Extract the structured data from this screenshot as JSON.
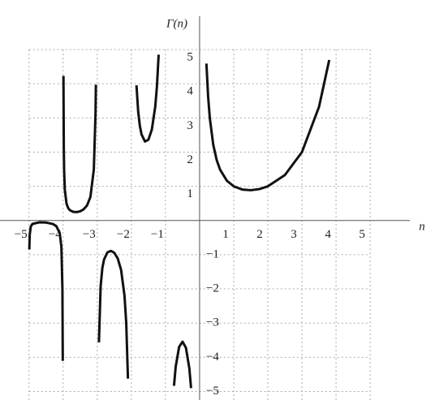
{
  "chart_data": {
    "type": "line",
    "title": "Γ(n)",
    "x_label": "n",
    "color": "#111111",
    "grid": true,
    "x": [
      -4.99,
      -4.98,
      -4.95,
      -4.9,
      -4.7,
      -4.5,
      -4.3,
      -4.2,
      -4.1,
      -4.05,
      -4.02,
      -4.01,
      -4,
      -3.99,
      -3.98,
      -3.97,
      -3.95,
      -3.9,
      -3.85,
      -3.8,
      -3.7,
      -3.6,
      -3.5,
      -3.4,
      -3.3,
      -3.2,
      -3.1,
      -3.05,
      -3.04,
      -3,
      -2.95,
      -2.9,
      -2.85,
      -2.8,
      -2.7,
      -2.6,
      -2.5,
      -2.4,
      -2.3,
      -2.2,
      -2.15,
      -2.1,
      -2,
      -1.85,
      -1.8,
      -1.75,
      -1.7,
      -1.6,
      -1.5,
      -1.4,
      -1.3,
      -1.25,
      -1.2,
      -1,
      -0.75,
      -0.7,
      -0.6,
      -0.5,
      -0.4,
      -0.3,
      -0.25,
      0,
      0.2,
      0.25,
      0.3,
      0.4,
      0.5,
      0.6,
      0.8,
      1,
      1.25,
      1.5,
      1.75,
      2,
      2.5,
      3,
      3.5,
      3.8
    ],
    "values": [
      -0.848,
      -0.4313,
      -0.1822,
      -0.1004,
      -0.0537,
      -0.06,
      -0.102,
      -0.1641,
      -0.364,
      -0.7758,
      -2.022,
      -4.104,
      null,
      4.231,
      2.148,
      1.4552,
      0.902,
      0.4919,
      0.3605,
      0.2997,
      0.2523,
      0.2468,
      0.2701,
      0.3259,
      0.4385,
      0.6891,
      1.4923,
      3.142,
      3.972,
      null,
      -3.5628,
      -1.9184,
      -1.3879,
      -1.1388,
      -0.9312,
      -0.8887,
      -0.9453,
      -1.108,
      -1.4472,
      -2.205,
      -3.0,
      -4.626,
      null,
      3.9556,
      3.1885,
      2.7623,
      2.5143,
      2.3106,
      2.3633,
      2.6593,
      3.3286,
      3.9214,
      4.851,
      null,
      -4.834,
      -4.274,
      -3.697,
      -3.5449,
      -3.723,
      -4.327,
      -4.9017,
      null,
      4.5908,
      3.6256,
      2.9916,
      2.2182,
      1.7725,
      1.4892,
      1.1642,
      1,
      0.9064,
      0.8862,
      0.9191,
      1,
      1.3293,
      2,
      3.3234,
      4.6942
    ],
    "xlim": [
      -5.85,
      6.9
    ],
    "ylim": [
      -5.25,
      6.45
    ],
    "xticks": [
      {
        "value": -5,
        "label": "−5"
      },
      {
        "value": -4,
        "label": "−4"
      },
      {
        "value": -3,
        "label": "−3"
      },
      {
        "value": -2,
        "label": "−2"
      },
      {
        "value": -1,
        "label": "−1"
      },
      1,
      2,
      3,
      4,
      5
    ],
    "yticks": [
      {
        "value": -5,
        "label": "−5"
      },
      {
        "value": -4,
        "label": "−4"
      },
      {
        "value": -3,
        "label": "−3"
      },
      {
        "value": -2,
        "label": "−2"
      },
      {
        "value": -1,
        "label": "−1"
      },
      1,
      2,
      3,
      4,
      5
    ]
  }
}
